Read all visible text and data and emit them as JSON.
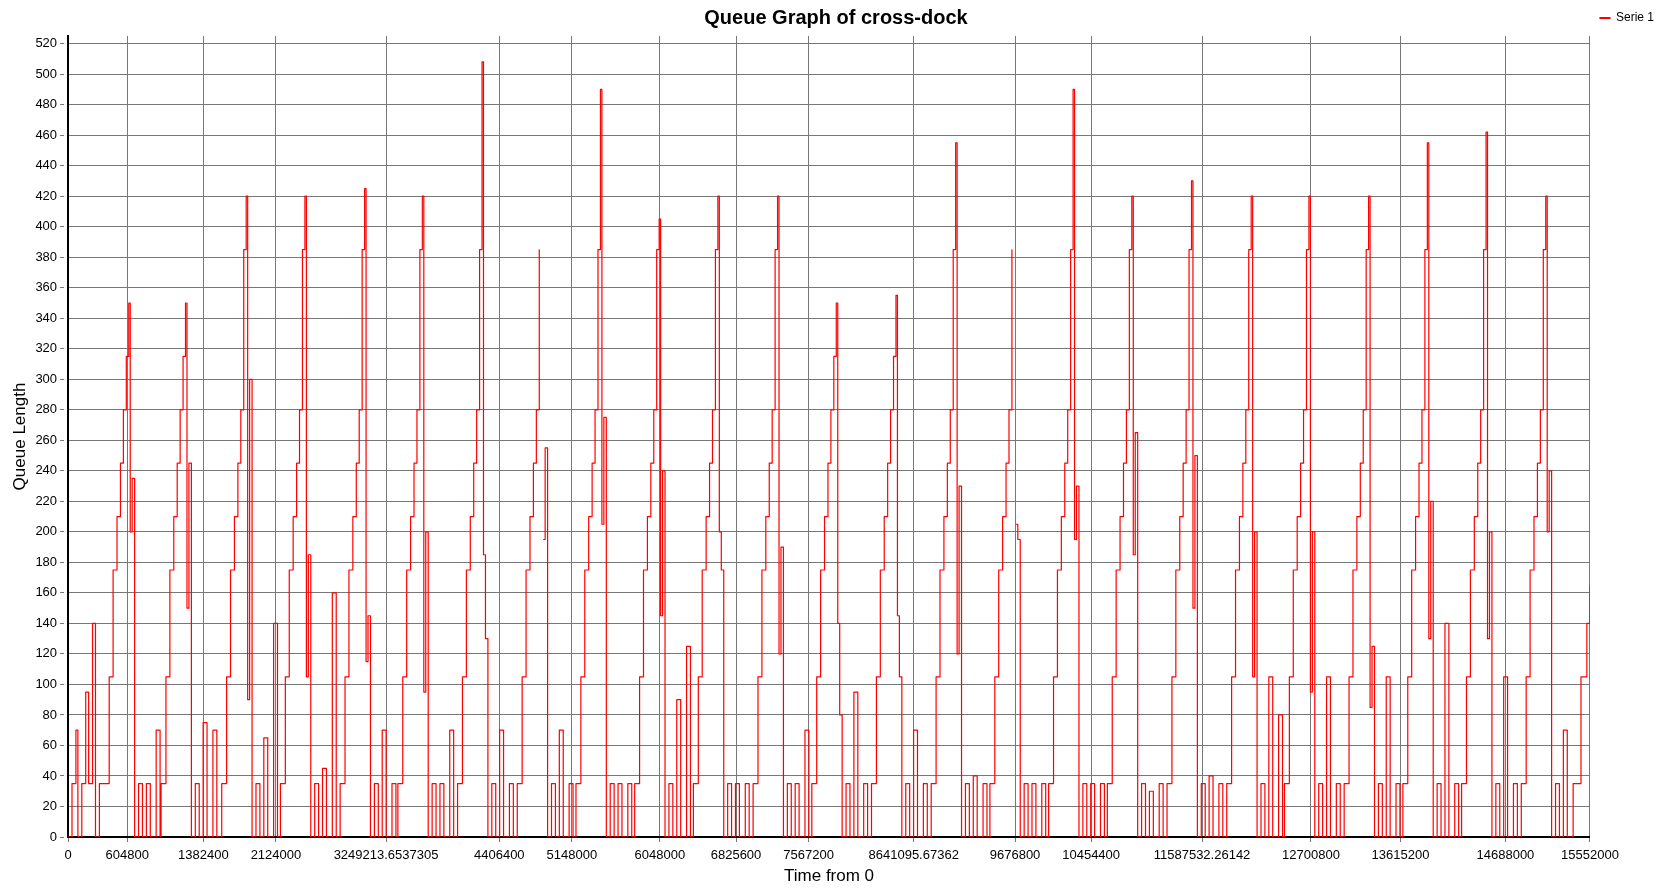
{
  "chart_data": {
    "type": "step",
    "title": "Queue Graph of cross-dock",
    "xlabel": "Time from 0",
    "ylabel": "Queue Length",
    "xlim": [
      0,
      15552000
    ],
    "xticks": [
      0,
      604800,
      1382400,
      2124000,
      3249213.6537305,
      4406400,
      5148000,
      6048000,
      6825600,
      7567200,
      8641095.67362,
      9676800,
      10454400,
      11587532.26142,
      12700800,
      13615200,
      14688000,
      15552000
    ],
    "ylim": [
      0,
      525
    ],
    "yticks": [
      0,
      20,
      40,
      60,
      80,
      100,
      120,
      140,
      160,
      180,
      200,
      220,
      240,
      260,
      280,
      300,
      320,
      340,
      360,
      380,
      400,
      420,
      440,
      460,
      480,
      500,
      520
    ],
    "grid": true,
    "legend": "top right",
    "line_style": "solid",
    "x": [
      0,
      40000,
      80000,
      100000,
      140000,
      180000,
      210000,
      250000,
      280000,
      320000,
      370000,
      420000,
      460000,
      500000,
      535000,
      565000,
      595000,
      620000,
      635000,
      655000,
      680000,
      720000,
      760000,
      800000,
      840000,
      900000,
      940000,
      950000,
      1000000,
      1040000,
      1080000,
      1115000,
      1145000,
      1175000,
      1200000,
      1215000,
      1235000,
      1260000,
      1300000,
      1340000,
      1380000,
      1420000,
      1480000,
      1520000,
      1570000,
      1620000,
      1660000,
      1700000,
      1735000,
      1765000,
      1795000,
      1820000,
      1835000,
      1855000,
      1880000,
      1920000,
      1960000,
      2000000,
      2040000,
      2100000,
      2140000,
      2170000,
      2220000,
      2260000,
      2300000,
      2335000,
      2365000,
      2395000,
      2420000,
      2435000,
      2455000,
      2480000,
      2520000,
      2560000,
      2600000,
      2640000,
      2700000,
      2740000,
      2780000,
      2830000,
      2870000,
      2910000,
      2945000,
      2975000,
      3005000,
      3030000,
      3045000,
      3065000,
      3090000,
      3130000,
      3170000,
      3210000,
      3250000,
      3310000,
      3350000,
      3370000,
      3420000,
      3460000,
      3500000,
      3535000,
      3565000,
      3595000,
      3620000,
      3635000,
      3655000,
      3680000,
      3720000,
      3760000,
      3800000,
      3840000,
      3900000,
      3940000,
      3980000,
      4030000,
      4070000,
      4110000,
      4145000,
      4175000,
      4205000,
      4230000,
      4245000,
      4265000,
      4290000,
      4330000,
      4370000,
      4410000,
      4450000,
      4510000,
      4550000,
      4590000,
      4640000,
      4680000,
      4720000,
      4755000,
      4785000,
      4815000,
      4840000,
      4855000,
      4875000,
      4900000,
      4940000,
      4980000,
      5020000,
      5060000,
      5120000,
      5160000,
      5190000,
      5240000,
      5280000,
      5320000,
      5355000,
      5385000,
      5415000,
      5440000,
      5455000,
      5475000,
      5500000,
      5540000,
      5580000,
      5620000,
      5660000,
      5720000,
      5760000,
      5790000,
      5840000,
      5880000,
      5920000,
      5955000,
      5985000,
      6015000,
      6040000,
      6055000,
      6075000,
      6100000,
      6140000,
      6180000,
      6220000,
      6260000,
      6320000,
      6360000,
      6390000,
      6440000,
      6480000,
      6520000,
      6555000,
      6585000,
      6615000,
      6640000,
      6655000,
      6675000,
      6700000,
      6740000,
      6780000,
      6820000,
      6860000,
      6920000,
      6960000,
      7000000,
      7050000,
      7090000,
      7130000,
      7165000,
      7195000,
      7225000,
      7250000,
      7265000,
      7285000,
      7310000,
      7350000,
      7390000,
      7430000,
      7470000,
      7530000,
      7570000,
      7600000,
      7650000,
      7690000,
      7730000,
      7765000,
      7795000,
      7825000,
      7850000,
      7865000,
      7885000,
      7910000,
      7950000,
      7990000,
      8030000,
      8070000,
      8130000,
      8170000,
      8210000,
      8260000,
      8300000,
      8340000,
      8375000,
      8405000,
      8435000,
      8460000,
      8475000,
      8495000,
      8520000,
      8560000,
      8600000,
      8640000,
      8680000,
      8740000,
      8780000,
      8820000,
      8870000,
      8910000,
      8950000,
      8985000,
      9015000,
      9045000,
      9070000,
      9085000,
      9105000,
      9130000,
      9170000,
      9210000,
      9250000,
      9290000,
      9350000,
      9390000,
      9420000,
      9470000,
      9510000,
      9550000,
      9585000,
      9615000,
      9645000,
      9670000,
      9685000,
      9705000,
      9730000,
      9770000,
      9810000,
      9850000,
      9890000,
      9950000,
      9990000,
      10020000,
      10070000,
      10110000,
      10150000,
      10185000,
      10215000,
      10245000,
      10270000,
      10285000,
      10305000,
      10330000,
      10370000,
      10410000,
      10450000,
      10490000,
      10550000,
      10590000,
      10620000,
      10670000,
      10710000,
      10750000,
      10785000,
      10815000,
      10845000,
      10870000,
      10885000,
      10905000,
      10930000,
      10970000,
      11010000,
      11050000,
      11090000,
      11150000,
      11190000,
      11230000,
      11280000,
      11320000,
      11360000,
      11395000,
      11425000,
      11455000,
      11480000,
      11495000,
      11515000,
      11540000,
      11580000,
      11620000,
      11660000,
      11700000,
      11760000,
      11800000,
      11840000,
      11890000,
      11930000,
      11970000,
      12005000,
      12035000,
      12065000,
      12090000,
      12105000,
      12125000,
      12150000,
      12190000,
      12230000,
      12270000,
      12310000,
      12370000,
      12410000,
      12430000,
      12480000,
      12520000,
      12560000,
      12595000,
      12625000,
      12655000,
      12680000,
      12695000,
      12715000,
      12740000,
      12780000,
      12820000,
      12860000,
      12900000,
      12960000,
      13000000,
      13040000,
      13090000,
      13130000,
      13170000,
      13205000,
      13235000,
      13265000,
      13290000,
      13305000,
      13325000,
      13350000,
      13390000,
      13430000,
      13470000,
      13510000,
      13570000,
      13610000,
      13640000,
      13690000,
      13730000,
      13770000,
      13805000,
      13835000,
      13865000,
      13890000,
      13905000,
      13925000,
      13950000,
      13990000,
      14030000,
      14070000,
      14110000,
      14170000,
      14210000,
      14240000,
      14290000,
      14330000,
      14370000,
      14405000,
      14435000,
      14465000,
      14490000,
      14505000,
      14525000,
      14550000,
      14590000,
      14630000,
      14670000,
      14710000,
      14770000,
      14810000,
      14850000,
      14900000,
      14940000,
      14980000,
      15015000,
      15045000,
      15075000,
      15100000,
      15115000,
      15135000,
      15160000,
      15200000,
      15240000,
      15280000,
      15320000,
      15380000,
      15460000,
      15520000,
      15552000
    ],
    "series": [
      {
        "name": "Serie 1",
        "color": "#ff0000",
        "values": [
          0,
          35,
          70,
          0,
          35,
          95,
          35,
          140,
          0,
          35,
          35,
          105,
          175,
          210,
          245,
          280,
          315,
          350,
          200,
          235,
          0,
          35,
          0,
          35,
          0,
          70,
          0,
          35,
          105,
          175,
          210,
          245,
          280,
          315,
          350,
          150,
          245,
          0,
          35,
          0,
          75,
          0,
          70,
          0,
          35,
          105,
          175,
          210,
          245,
          280,
          385,
          420,
          90,
          300,
          0,
          35,
          0,
          65,
          0,
          140,
          0,
          35,
          105,
          175,
          210,
          245,
          280,
          385,
          420,
          105,
          185,
          0,
          35,
          0,
          45,
          0,
          160,
          0,
          35,
          105,
          175,
          210,
          245,
          280,
          385,
          425,
          115,
          145,
          0,
          35,
          0,
          70,
          0,
          35,
          0,
          35,
          105,
          175,
          210,
          245,
          280,
          385,
          420,
          95,
          200,
          0,
          35,
          0,
          35,
          0,
          70,
          0,
          35,
          105,
          175,
          210,
          245,
          280,
          385,
          508,
          185,
          130,
          0,
          35,
          0,
          70,
          0,
          35,
          0,
          35,
          105,
          175,
          210,
          245,
          280,
          385,
          null,
          195,
          255,
          0,
          35,
          0,
          70,
          0,
          35,
          0,
          35,
          105,
          175,
          210,
          245,
          280,
          385,
          490,
          205,
          275,
          0,
          35,
          0,
          35,
          0,
          35,
          0,
          35,
          105,
          175,
          210,
          245,
          280,
          385,
          405,
          145,
          240,
          0,
          35,
          0,
          90,
          0,
          125,
          0,
          35,
          105,
          175,
          210,
          245,
          280,
          385,
          420,
          200,
          175,
          0,
          35,
          0,
          35,
          0,
          35,
          0,
          35,
          105,
          175,
          210,
          245,
          280,
          385,
          420,
          120,
          190,
          0,
          35,
          0,
          35,
          0,
          70,
          0,
          35,
          105,
          175,
          210,
          245,
          280,
          315,
          350,
          140,
          80,
          0,
          35,
          0,
          95,
          0,
          35,
          0,
          35,
          105,
          175,
          210,
          245,
          280,
          315,
          355,
          145,
          105,
          0,
          35,
          0,
          70,
          0,
          35,
          0,
          35,
          105,
          175,
          210,
          245,
          280,
          385,
          455,
          120,
          230,
          0,
          35,
          0,
          40,
          0,
          35,
          0,
          35,
          105,
          175,
          210,
          245,
          280,
          385,
          null,
          205,
          195,
          0,
          35,
          0,
          35,
          0,
          35,
          0,
          35,
          105,
          175,
          210,
          245,
          280,
          385,
          490,
          195,
          230,
          0,
          35,
          0,
          35,
          0,
          35,
          0,
          35,
          105,
          175,
          210,
          245,
          280,
          385,
          420,
          185,
          265,
          0,
          35,
          0,
          30,
          0,
          35,
          0,
          35,
          105,
          175,
          210,
          245,
          280,
          385,
          430,
          150,
          250,
          0,
          35,
          0,
          40,
          0,
          35,
          0,
          35,
          105,
          175,
          210,
          245,
          280,
          385,
          420,
          105,
          200,
          0,
          35,
          0,
          105,
          0,
          80,
          0,
          35,
          105,
          175,
          210,
          245,
          280,
          385,
          420,
          95,
          200,
          0,
          35,
          0,
          105,
          0,
          35,
          0,
          35,
          105,
          175,
          210,
          245,
          280,
          385,
          420,
          85,
          125,
          0,
          35,
          0,
          105,
          0,
          35,
          0,
          35,
          105,
          175,
          210,
          245,
          280,
          385,
          455,
          130,
          220,
          0,
          35,
          0,
          140,
          0,
          35,
          0,
          35,
          105,
          175,
          210,
          245,
          280,
          385,
          462,
          130,
          200,
          0,
          35,
          0,
          105,
          0,
          35,
          0,
          35,
          105,
          175,
          210,
          245,
          280,
          385,
          420,
          200,
          240,
          0,
          35,
          0,
          70,
          0,
          35,
          105,
          140,
          165
        ]
      }
    ]
  }
}
